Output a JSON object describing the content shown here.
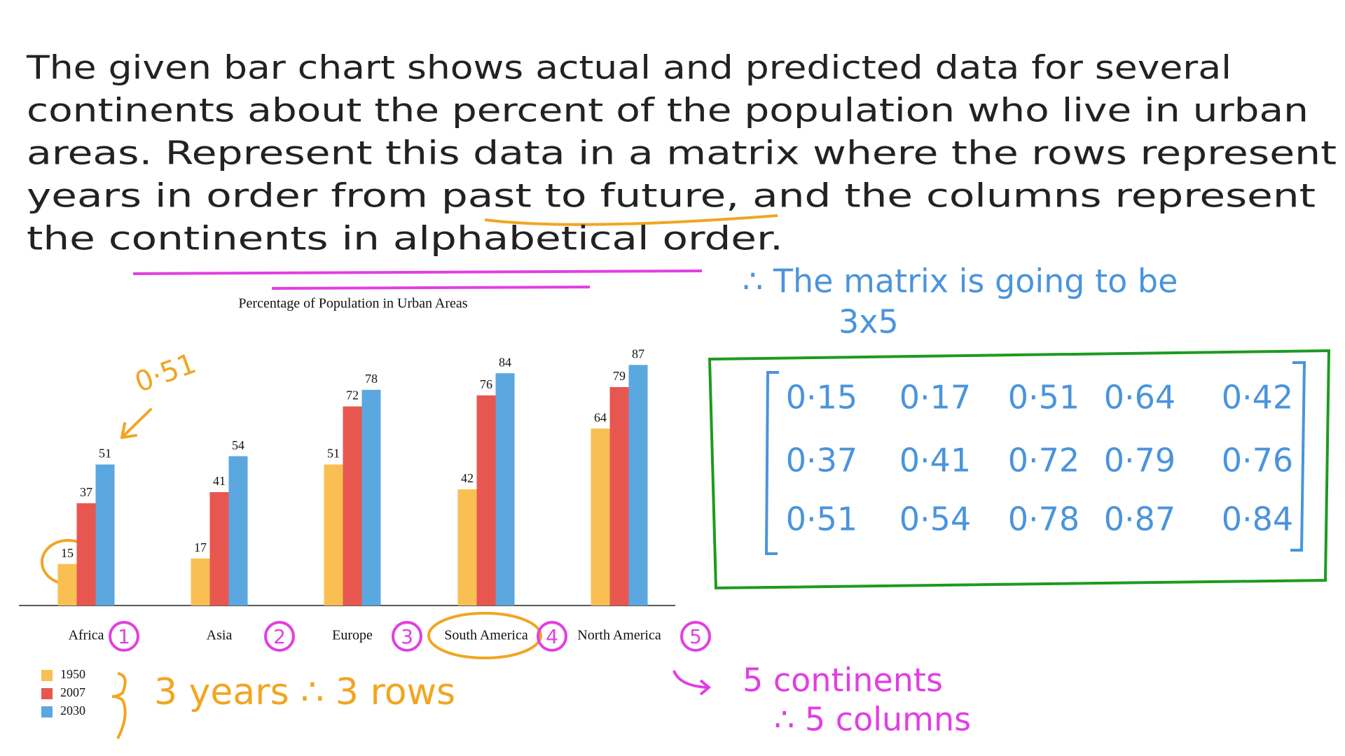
{
  "question": {
    "lines": [
      "The given bar chart shows actual and predicted data for several",
      "continents about the percent of the population who live in urban",
      "areas. Represent this data in a matrix where the rows represent",
      "years in order from past to future, and the columns represent",
      "the continents in alphabetical order."
    ]
  },
  "chart_data": {
    "type": "bar",
    "title": "Percentage of Population in Urban Areas",
    "categories": [
      "Africa",
      "Asia",
      "Europe",
      "South America",
      "North America"
    ],
    "series": [
      {
        "name": "1950",
        "color": "#f9bf52",
        "values": [
          15,
          17,
          51,
          42,
          64
        ]
      },
      {
        "name": "2007",
        "color": "#e8574f",
        "values": [
          37,
          41,
          72,
          76,
          79
        ]
      },
      {
        "name": "2030",
        "color": "#5ba7e0",
        "values": [
          51,
          54,
          78,
          84,
          87
        ]
      }
    ],
    "legend": "bottom-left"
  },
  "annotations": {
    "arrow_label": "0·51",
    "matrix_size": [
      "∴ The matrix is going to be",
      "3x5"
    ],
    "category_numbers": [
      "1",
      "2",
      "3",
      "4",
      "5"
    ],
    "rows_note": "3 years ∴ 3 rows",
    "columns_note": [
      "5 continents",
      "∴ 5 columns"
    ]
  },
  "matrix": {
    "rows": [
      [
        "0·15",
        "0·17",
        "0·51",
        "0·64",
        "0·42"
      ],
      [
        "0·37",
        "0·41",
        "0·72",
        "0·79",
        "0·76"
      ],
      [
        "0·51",
        "0·54",
        "0·78",
        "0·87",
        "0·84"
      ]
    ]
  }
}
